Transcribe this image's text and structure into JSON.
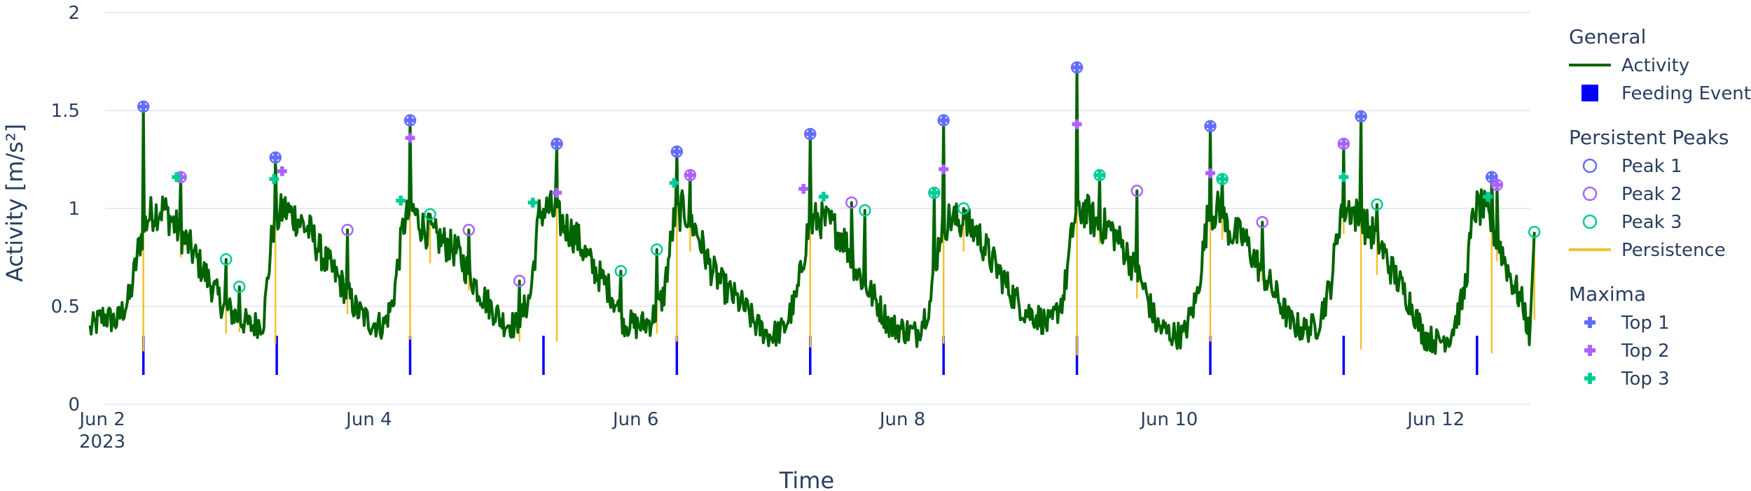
{
  "chart_data": {
    "type": "line",
    "title": "",
    "xlabel": "Time",
    "ylabel": "Activity [m/s²]",
    "ylim": [
      0,
      2
    ],
    "y_ticks": [
      "0",
      "0.5",
      "1",
      "1.5",
      "2"
    ],
    "x_range_days": [
      1.8,
      12.75
    ],
    "x_ticks": [
      {
        "day": 2,
        "label": "Jun 2",
        "sublabel": "2023"
      },
      {
        "day": 4,
        "label": "Jun 4",
        "sublabel": ""
      },
      {
        "day": 6,
        "label": "Jun 6",
        "sublabel": ""
      },
      {
        "day": 8,
        "label": "Jun 8",
        "sublabel": ""
      },
      {
        "day": 10,
        "label": "Jun 10",
        "sublabel": ""
      },
      {
        "day": 12,
        "label": "Jun 12",
        "sublabel": ""
      }
    ],
    "grid": true,
    "legend_placement": "right",
    "colors": {
      "activity": "#006400",
      "feeding": "#0000ff",
      "persistence": "#f2c12e",
      "peak1": "#636efa",
      "peak2": "#ab63fa",
      "peak3": "#00cc96",
      "top1": "#636efa",
      "top2": "#ab63fa",
      "top3": "#00cc96",
      "grid": "#e8ecf2",
      "text": "#2a3f5f"
    },
    "activity_anchors": [
      [
        1.95,
        0.38
      ],
      [
        2.05,
        0.45
      ],
      [
        2.15,
        0.42
      ],
      [
        2.25,
        0.55
      ],
      [
        2.32,
        0.82
      ],
      [
        2.38,
        0.95
      ],
      [
        2.42,
        0.98
      ],
      [
        2.5,
        1.0
      ],
      [
        2.6,
        0.9
      ],
      [
        2.7,
        0.8
      ],
      [
        2.85,
        0.62
      ],
      [
        2.95,
        0.5
      ],
      [
        3.05,
        0.45
      ],
      [
        3.15,
        0.4
      ],
      [
        3.25,
        0.42
      ],
      [
        3.32,
        0.9
      ],
      [
        3.4,
        1.0
      ],
      [
        3.5,
        0.95
      ],
      [
        3.6,
        0.88
      ],
      [
        3.7,
        0.75
      ],
      [
        3.85,
        0.6
      ],
      [
        3.95,
        0.48
      ],
      [
        4.05,
        0.42
      ],
      [
        4.15,
        0.4
      ],
      [
        4.22,
        0.52
      ],
      [
        4.3,
        0.92
      ],
      [
        4.36,
        1.0
      ],
      [
        4.45,
        0.9
      ],
      [
        4.55,
        0.85
      ],
      [
        4.7,
        0.78
      ],
      [
        4.85,
        0.6
      ],
      [
        4.95,
        0.5
      ],
      [
        5.05,
        0.42
      ],
      [
        5.15,
        0.4
      ],
      [
        5.25,
        0.55
      ],
      [
        5.32,
        0.98
      ],
      [
        5.4,
        1.0
      ],
      [
        5.5,
        0.92
      ],
      [
        5.6,
        0.85
      ],
      [
        5.7,
        0.72
      ],
      [
        5.85,
        0.58
      ],
      [
        5.95,
        0.42
      ],
      [
        6.05,
        0.4
      ],
      [
        6.15,
        0.42
      ],
      [
        6.25,
        0.55
      ],
      [
        6.33,
        0.95
      ],
      [
        6.4,
        1.0
      ],
      [
        6.5,
        0.88
      ],
      [
        6.6,
        0.7
      ],
      [
        6.7,
        0.6
      ],
      [
        6.85,
        0.5
      ],
      [
        6.95,
        0.4
      ],
      [
        7.05,
        0.35
      ],
      [
        7.15,
        0.38
      ],
      [
        7.25,
        0.55
      ],
      [
        7.33,
        0.88
      ],
      [
        7.4,
        0.95
      ],
      [
        7.5,
        0.92
      ],
      [
        7.6,
        0.85
      ],
      [
        7.7,
        0.68
      ],
      [
        7.85,
        0.52
      ],
      [
        7.95,
        0.4
      ],
      [
        8.05,
        0.38
      ],
      [
        8.15,
        0.36
      ],
      [
        8.25,
        0.52
      ],
      [
        8.33,
        0.9
      ],
      [
        8.4,
        0.95
      ],
      [
        8.5,
        0.92
      ],
      [
        8.6,
        0.88
      ],
      [
        8.7,
        0.75
      ],
      [
        8.85,
        0.58
      ],
      [
        8.95,
        0.48
      ],
      [
        9.05,
        0.45
      ],
      [
        9.15,
        0.4
      ],
      [
        9.25,
        0.55
      ],
      [
        9.33,
        0.95
      ],
      [
        9.4,
        1.0
      ],
      [
        9.5,
        0.92
      ],
      [
        9.6,
        0.9
      ],
      [
        9.7,
        0.8
      ],
      [
        9.85,
        0.6
      ],
      [
        9.95,
        0.4
      ],
      [
        10.05,
        0.36
      ],
      [
        10.15,
        0.35
      ],
      [
        10.25,
        0.55
      ],
      [
        10.33,
        0.95
      ],
      [
        10.4,
        1.0
      ],
      [
        10.5,
        0.88
      ],
      [
        10.6,
        0.85
      ],
      [
        10.7,
        0.72
      ],
      [
        10.85,
        0.55
      ],
      [
        10.95,
        0.42
      ],
      [
        11.05,
        0.38
      ],
      [
        11.15,
        0.4
      ],
      [
        11.25,
        0.6
      ],
      [
        11.33,
        1.0
      ],
      [
        11.4,
        1.0
      ],
      [
        11.5,
        0.92
      ],
      [
        11.6,
        0.85
      ],
      [
        11.7,
        0.7
      ],
      [
        11.85,
        0.52
      ],
      [
        11.95,
        0.35
      ],
      [
        12.05,
        0.32
      ],
      [
        12.15,
        0.35
      ],
      [
        12.25,
        0.55
      ],
      [
        12.33,
        1.0
      ],
      [
        12.4,
        1.0
      ],
      [
        12.5,
        0.85
      ],
      [
        12.6,
        0.65
      ],
      [
        12.7,
        0.5
      ],
      [
        12.75,
        0.32
      ]
    ],
    "feeding_events": [
      2.35,
      3.35,
      4.35,
      5.35,
      6.35,
      7.35,
      8.35,
      9.35,
      10.35,
      11.35,
      12.35
    ],
    "feeding_range": [
      0.15,
      0.35
    ],
    "peaks": [
      {
        "rank": 1,
        "x": 2.35,
        "y": 1.52,
        "low": 0.27
      },
      {
        "rank": 2,
        "x": 2.63,
        "y": 1.16,
        "low": 0.75
      },
      {
        "rank": 3,
        "x": 2.97,
        "y": 0.74,
        "low": 0.36
      },
      {
        "rank": 3,
        "x": 3.07,
        "y": 0.6,
        "low": 0.37
      },
      {
        "rank": 1,
        "x": 3.34,
        "y": 1.26,
        "low": 0.31
      },
      {
        "rank": 2,
        "x": 3.88,
        "y": 0.89,
        "low": 0.46
      },
      {
        "rank": 1,
        "x": 4.35,
        "y": 1.45,
        "low": 0.33
      },
      {
        "rank": 3,
        "x": 4.5,
        "y": 0.97,
        "low": 0.72
      },
      {
        "rank": 2,
        "x": 4.79,
        "y": 0.89,
        "low": 0.58
      },
      {
        "rank": 2,
        "x": 5.17,
        "y": 0.63,
        "low": 0.32
      },
      {
        "rank": 1,
        "x": 5.45,
        "y": 1.33,
        "low": 0.32
      },
      {
        "rank": 3,
        "x": 5.93,
        "y": 0.68,
        "low": 0.43
      },
      {
        "rank": 3,
        "x": 6.2,
        "y": 0.79,
        "low": 0.36
      },
      {
        "rank": 1,
        "x": 6.35,
        "y": 1.29,
        "low": 0.32
      },
      {
        "rank": 2,
        "x": 6.45,
        "y": 1.17,
        "low": 0.78
      },
      {
        "rank": 1,
        "x": 7.35,
        "y": 1.38,
        "low": 0.29
      },
      {
        "rank": 2,
        "x": 7.66,
        "y": 1.03,
        "low": 0.75
      },
      {
        "rank": 3,
        "x": 7.76,
        "y": 0.99,
        "low": 0.68
      },
      {
        "rank": 3,
        "x": 8.28,
        "y": 1.08,
        "low": 0.72
      },
      {
        "rank": 1,
        "x": 8.35,
        "y": 1.45,
        "low": 0.31
      },
      {
        "rank": 3,
        "x": 8.5,
        "y": 1.0,
        "low": 0.78
      },
      {
        "rank": 1,
        "x": 9.35,
        "y": 1.72,
        "low": 0.25
      },
      {
        "rank": 3,
        "x": 9.52,
        "y": 1.17,
        "low": 0.82
      },
      {
        "rank": 2,
        "x": 9.8,
        "y": 1.09,
        "low": 0.54
      },
      {
        "rank": 1,
        "x": 10.35,
        "y": 1.42,
        "low": 0.32
      },
      {
        "rank": 3,
        "x": 10.44,
        "y": 1.15,
        "low": 0.84
      },
      {
        "rank": 2,
        "x": 10.74,
        "y": 0.93,
        "low": 0.63
      },
      {
        "rank": 2,
        "x": 11.35,
        "y": 1.33,
        "low": 0.87
      },
      {
        "rank": 1,
        "x": 11.48,
        "y": 1.47,
        "low": 0.28
      },
      {
        "rank": 3,
        "x": 11.6,
        "y": 1.02,
        "low": 0.66
      },
      {
        "rank": 1,
        "x": 12.46,
        "y": 1.16,
        "low": 0.26
      },
      {
        "rank": 2,
        "x": 12.5,
        "y": 1.12,
        "low": 0.73
      },
      {
        "rank": 3,
        "x": 12.78,
        "y": 0.88,
        "low": 0.43
      }
    ],
    "maxima": [
      {
        "rank": 1,
        "x": 2.35,
        "y": 1.52
      },
      {
        "rank": 1,
        "x": 3.34,
        "y": 1.26
      },
      {
        "rank": 1,
        "x": 4.35,
        "y": 1.45
      },
      {
        "rank": 1,
        "x": 5.45,
        "y": 1.33
      },
      {
        "rank": 1,
        "x": 6.35,
        "y": 1.29
      },
      {
        "rank": 1,
        "x": 7.35,
        "y": 1.38
      },
      {
        "rank": 1,
        "x": 8.35,
        "y": 1.45
      },
      {
        "rank": 1,
        "x": 9.35,
        "y": 1.72
      },
      {
        "rank": 1,
        "x": 10.35,
        "y": 1.42
      },
      {
        "rank": 1,
        "x": 11.48,
        "y": 1.47
      },
      {
        "rank": 1,
        "x": 12.46,
        "y": 1.16
      },
      {
        "rank": 2,
        "x": 2.63,
        "y": 1.16
      },
      {
        "rank": 2,
        "x": 3.39,
        "y": 1.19
      },
      {
        "rank": 2,
        "x": 4.35,
        "y": 1.36
      },
      {
        "rank": 2,
        "x": 5.45,
        "y": 1.08
      },
      {
        "rank": 2,
        "x": 6.45,
        "y": 1.17
      },
      {
        "rank": 2,
        "x": 7.3,
        "y": 1.1
      },
      {
        "rank": 2,
        "x": 8.35,
        "y": 1.2
      },
      {
        "rank": 2,
        "x": 9.35,
        "y": 1.43
      },
      {
        "rank": 2,
        "x": 10.35,
        "y": 1.18
      },
      {
        "rank": 2,
        "x": 11.35,
        "y": 1.33
      },
      {
        "rank": 2,
        "x": 12.5,
        "y": 1.12
      },
      {
        "rank": 3,
        "x": 2.6,
        "y": 1.16
      },
      {
        "rank": 3,
        "x": 3.33,
        "y": 1.15
      },
      {
        "rank": 3,
        "x": 4.28,
        "y": 1.04
      },
      {
        "rank": 3,
        "x": 5.27,
        "y": 1.03
      },
      {
        "rank": 3,
        "x": 6.33,
        "y": 1.13
      },
      {
        "rank": 3,
        "x": 7.45,
        "y": 1.06
      },
      {
        "rank": 3,
        "x": 8.28,
        "y": 1.08
      },
      {
        "rank": 3,
        "x": 9.52,
        "y": 1.17
      },
      {
        "rank": 3,
        "x": 10.44,
        "y": 1.15
      },
      {
        "rank": 3,
        "x": 11.35,
        "y": 1.16
      },
      {
        "rank": 3,
        "x": 12.43,
        "y": 1.06
      }
    ],
    "legend": {
      "groups": [
        {
          "title": "General",
          "items": [
            {
              "label": "Activity",
              "symbol": "line",
              "color_key": "activity"
            },
            {
              "label": "Feeding Event",
              "symbol": "square",
              "color_key": "feeding"
            }
          ]
        },
        {
          "title": "Persistent Peaks",
          "items": [
            {
              "label": "Peak 1",
              "symbol": "circle",
              "color_key": "peak1"
            },
            {
              "label": "Peak 2",
              "symbol": "circle",
              "color_key": "peak2"
            },
            {
              "label": "Peak 3",
              "symbol": "circle",
              "color_key": "peak3"
            },
            {
              "label": "Persistence",
              "symbol": "line",
              "color_key": "persistence"
            }
          ]
        },
        {
          "title": "Maxima",
          "items": [
            {
              "label": "Top 1",
              "symbol": "cross",
              "color_key": "top1"
            },
            {
              "label": "Top 2",
              "symbol": "cross",
              "color_key": "top2"
            },
            {
              "label": "Top 3",
              "symbol": "cross",
              "color_key": "top3"
            }
          ]
        }
      ]
    }
  }
}
